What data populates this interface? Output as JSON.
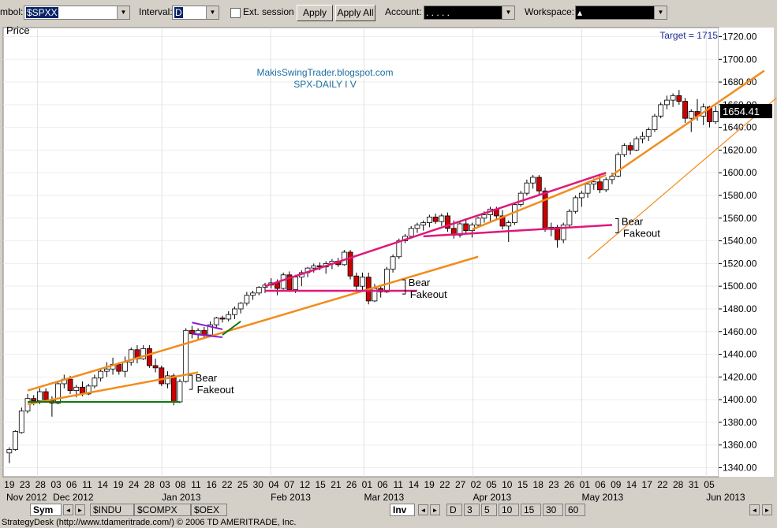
{
  "toolbar": {
    "symbol_label": "mbol:",
    "symbol_value": "$SPXX",
    "interval_label": "Interval:",
    "interval_value": "D",
    "ext_session_label": "Ext. session",
    "apply_label": "Apply",
    "apply_all_label": "Apply All",
    "account_label": "Account:",
    "account_value": ".    .     .     .   .",
    "workspace_label": "Workspace:",
    "workspace_value": "▴"
  },
  "bottom": {
    "sym_tab": "Sym",
    "tabs": [
      "$INDU",
      "$COMPX",
      "$OEX"
    ],
    "inv_tab": "Inv",
    "intervals": [
      "D",
      "3",
      "5",
      "10",
      "15",
      "30",
      "60"
    ],
    "nav_prev": "◄",
    "nav_next": "►"
  },
  "status_text": "StrategyDesk (http://www.tdameritrade.com/) © 2006 TD AMERITRADE, Inc.",
  "colors": {
    "up_candle": "#ffffff",
    "down_candle": "#cc0000",
    "orange_trend": "#f28c1c",
    "magenta_trend": "#e0177a",
    "green_support": "#117a11",
    "purple_flag": "#8a1bd8",
    "annotation_blue": "#1a6fa0",
    "target_blue": "#1f2a9a"
  },
  "chart_data": {
    "type": "candlestick",
    "panel_label": "Price",
    "watermark_line1": "MakisSwingTrader.blogspot.com",
    "watermark_line2": "SPX-DAILY  I V",
    "target_label": "Target = 1715",
    "last_price": "1654.41",
    "ylim": [
      1332,
      1728
    ],
    "yticks": [
      1340,
      1360,
      1380,
      1400,
      1420,
      1440,
      1460,
      1480,
      1500,
      1520,
      1540,
      1560,
      1580,
      1600,
      1620,
      1640,
      1660,
      1680,
      1700,
      1720
    ],
    "ytick_labels": [
      "1340.00",
      "1360.00",
      "1380.00",
      "1400.00",
      "1420.00",
      "1440.00",
      "1460.00",
      "1480.00",
      "1500.00",
      "1520.00",
      "1540.00",
      "1560.00",
      "1580.00",
      "1600.00",
      "1620.00",
      "1640.00",
      "1660.00",
      "1680.00",
      "1700.00",
      "1720.00"
    ],
    "day_labels": [
      "19",
      "23",
      "28",
      "03",
      "06",
      "11",
      "14",
      "19",
      "24",
      "28",
      "03",
      "08",
      "11",
      "16",
      "22",
      "25",
      "30",
      "04",
      "07",
      "12",
      "15",
      "21",
      "26",
      "01",
      "06",
      "11",
      "14",
      "19",
      "22",
      "27",
      "02",
      "05",
      "10",
      "15",
      "18",
      "23",
      "26",
      "01",
      "06",
      "09",
      "14",
      "17",
      "22",
      "28",
      "31",
      "05"
    ],
    "month_labels": [
      {
        "label": "Nov 2012",
        "day_index": 0
      },
      {
        "label": "Dec 2012",
        "day_index": 3
      },
      {
        "label": "Jan 2013",
        "day_index": 10
      },
      {
        "label": "Feb 2013",
        "day_index": 17
      },
      {
        "label": "Mar 2013",
        "day_index": 23
      },
      {
        "label": "Apr 2013",
        "day_index": 30
      },
      {
        "label": "May 2013",
        "day_index": 37
      },
      {
        "label": "Jun 2013",
        "day_index": 45
      }
    ],
    "month_boundaries": [
      2,
      10,
      17,
      23,
      30,
      37,
      45
    ],
    "candles": [
      [
        1353,
        1358,
        1344,
        1356
      ],
      [
        1356,
        1373,
        1355,
        1372
      ],
      [
        1371,
        1393,
        1370,
        1390
      ],
      [
        1390,
        1405,
        1388,
        1401
      ],
      [
        1401,
        1404,
        1395,
        1399
      ],
      [
        1399,
        1410,
        1396,
        1407
      ],
      [
        1407,
        1410,
        1398,
        1400
      ],
      [
        1400,
        1403,
        1385,
        1397
      ],
      [
        1397,
        1416,
        1396,
        1414
      ],
      [
        1414,
        1422,
        1410,
        1418
      ],
      [
        1418,
        1421,
        1405,
        1408
      ],
      [
        1408,
        1413,
        1402,
        1411
      ],
      [
        1411,
        1416,
        1403,
        1405
      ],
      [
        1405,
        1414,
        1404,
        1412
      ],
      [
        1412,
        1422,
        1410,
        1419
      ],
      [
        1419,
        1427,
        1416,
        1425
      ],
      [
        1425,
        1433,
        1420,
        1427
      ],
      [
        1427,
        1437,
        1422,
        1431
      ],
      [
        1431,
        1433,
        1422,
        1425
      ],
      [
        1425,
        1438,
        1420,
        1433
      ],
      [
        1433,
        1446,
        1430,
        1444
      ],
      [
        1444,
        1448,
        1432,
        1436
      ],
      [
        1436,
        1448,
        1435,
        1445
      ],
      [
        1445,
        1448,
        1428,
        1430
      ],
      [
        1430,
        1436,
        1424,
        1428
      ],
      [
        1428,
        1430,
        1412,
        1414
      ],
      [
        1414,
        1425,
        1410,
        1421
      ],
      [
        1421,
        1423,
        1395,
        1398
      ],
      [
        1398,
        1418,
        1397,
        1416
      ],
      [
        1416,
        1463,
        1415,
        1461
      ],
      [
        1461,
        1465,
        1454,
        1458
      ],
      [
        1458,
        1463,
        1452,
        1461
      ],
      [
        1461,
        1464,
        1455,
        1457
      ],
      [
        1457,
        1469,
        1455,
        1466
      ],
      [
        1466,
        1473,
        1463,
        1472
      ],
      [
        1472,
        1474,
        1468,
        1471
      ],
      [
        1471,
        1478,
        1469,
        1475
      ],
      [
        1475,
        1482,
        1471,
        1480
      ],
      [
        1480,
        1486,
        1476,
        1485
      ],
      [
        1485,
        1495,
        1483,
        1492
      ],
      [
        1492,
        1496,
        1488,
        1494
      ],
      [
        1494,
        1500,
        1492,
        1499
      ],
      [
        1499,
        1503,
        1494,
        1501
      ],
      [
        1501,
        1507,
        1498,
        1503
      ],
      [
        1503,
        1506,
        1492,
        1498
      ],
      [
        1498,
        1512,
        1497,
        1510
      ],
      [
        1510,
        1513,
        1495,
        1497
      ],
      [
        1497,
        1510,
        1494,
        1508
      ],
      [
        1508,
        1514,
        1500,
        1512
      ],
      [
        1512,
        1517,
        1508,
        1516
      ],
      [
        1516,
        1520,
        1512,
        1518
      ],
      [
        1518,
        1521,
        1514,
        1517
      ],
      [
        1517,
        1522,
        1511,
        1520
      ],
      [
        1520,
        1524,
        1515,
        1522
      ],
      [
        1522,
        1525,
        1517,
        1519
      ],
      [
        1519,
        1532,
        1518,
        1530
      ],
      [
        1530,
        1532,
        1506,
        1509
      ],
      [
        1509,
        1512,
        1496,
        1500
      ],
      [
        1500,
        1512,
        1496,
        1508
      ],
      [
        1508,
        1512,
        1484,
        1487
      ],
      [
        1487,
        1502,
        1486,
        1498
      ],
      [
        1498,
        1500,
        1490,
        1495
      ],
      [
        1495,
        1517,
        1494,
        1515
      ],
      [
        1515,
        1528,
        1512,
        1526
      ],
      [
        1526,
        1542,
        1524,
        1540
      ],
      [
        1540,
        1546,
        1538,
        1544
      ],
      [
        1544,
        1553,
        1542,
        1551
      ],
      [
        1551,
        1556,
        1547,
        1554
      ],
      [
        1554,
        1558,
        1549,
        1556
      ],
      [
        1556,
        1563,
        1552,
        1561
      ],
      [
        1561,
        1564,
        1555,
        1557
      ],
      [
        1557,
        1564,
        1553,
        1562
      ],
      [
        1562,
        1565,
        1548,
        1551
      ],
      [
        1551,
        1558,
        1542,
        1545
      ],
      [
        1545,
        1557,
        1543,
        1555
      ],
      [
        1555,
        1559,
        1547,
        1549
      ],
      [
        1549,
        1556,
        1543,
        1554
      ],
      [
        1554,
        1561,
        1552,
        1560
      ],
      [
        1560,
        1566,
        1556,
        1563
      ],
      [
        1563,
        1570,
        1556,
        1568
      ],
      [
        1568,
        1570,
        1558,
        1562
      ],
      [
        1562,
        1567,
        1550,
        1553
      ],
      [
        1553,
        1558,
        1539,
        1556
      ],
      [
        1556,
        1574,
        1554,
        1572
      ],
      [
        1572,
        1584,
        1570,
        1582
      ],
      [
        1582,
        1594,
        1580,
        1591
      ],
      [
        1591,
        1598,
        1586,
        1596
      ],
      [
        1596,
        1598,
        1580,
        1584
      ],
      [
        1584,
        1587,
        1548,
        1550
      ],
      [
        1550,
        1556,
        1544,
        1552
      ],
      [
        1552,
        1554,
        1534,
        1541
      ],
      [
        1541,
        1556,
        1538,
        1554
      ],
      [
        1554,
        1568,
        1552,
        1566
      ],
      [
        1566,
        1580,
        1564,
        1578
      ],
      [
        1578,
        1584,
        1570,
        1582
      ],
      [
        1582,
        1592,
        1578,
        1590
      ],
      [
        1590,
        1595,
        1585,
        1592
      ],
      [
        1592,
        1598,
        1582,
        1585
      ],
      [
        1585,
        1596,
        1583,
        1594
      ],
      [
        1594,
        1600,
        1590,
        1597
      ],
      [
        1597,
        1618,
        1596,
        1616
      ],
      [
        1616,
        1626,
        1614,
        1624
      ],
      [
        1624,
        1627,
        1616,
        1620
      ],
      [
        1620,
        1632,
        1619,
        1630
      ],
      [
        1630,
        1636,
        1626,
        1632
      ],
      [
        1632,
        1640,
        1628,
        1638
      ],
      [
        1638,
        1652,
        1636,
        1650
      ],
      [
        1650,
        1662,
        1648,
        1660
      ],
      [
        1660,
        1668,
        1656,
        1664
      ],
      [
        1664,
        1670,
        1658,
        1668
      ],
      [
        1668,
        1673,
        1660,
        1663
      ],
      [
        1663,
        1666,
        1644,
        1648
      ],
      [
        1648,
        1656,
        1636,
        1654
      ],
      [
        1654,
        1665,
        1646,
        1650
      ],
      [
        1650,
        1661,
        1642,
        1658
      ],
      [
        1658,
        1659,
        1640,
        1645
      ],
      [
        1645,
        1659,
        1643,
        1654
      ]
    ],
    "trendlines": [
      {
        "style": "orange",
        "from": [
          3,
          1408
        ],
        "to": [
          77,
          1526
        ]
      },
      {
        "style": "orange",
        "from": [
          3,
          1396
        ],
        "to": [
          31,
          1424
        ]
      },
      {
        "style": "green",
        "from": [
          3,
          1398
        ],
        "to": [
          28,
          1398
        ]
      },
      {
        "style": "purple",
        "from": [
          30,
          1468
        ],
        "to": [
          35,
          1462
        ]
      },
      {
        "style": "purple",
        "from": [
          30,
          1458
        ],
        "to": [
          35,
          1455
        ]
      },
      {
        "style": "green",
        "from": [
          35,
          1457
        ],
        "to": [
          38,
          1469
        ]
      },
      {
        "style": "magenta",
        "from": [
          42,
          1500
        ],
        "to": [
          98,
          1600
        ]
      },
      {
        "style": "magenta",
        "from": [
          42,
          1496
        ],
        "to": [
          67,
          1496
        ]
      },
      {
        "style": "magenta",
        "from": [
          68,
          1544
        ],
        "to": [
          99,
          1554
        ]
      },
      {
        "style": "orange",
        "from": [
          76,
          1550
        ],
        "to": [
          98,
          1598
        ]
      },
      {
        "style": "orange",
        "from": [
          99,
          1598
        ],
        "to": [
          124,
          1690
        ]
      },
      {
        "style": "orange_thin",
        "from": [
          95,
          1524
        ],
        "to": [
          126,
          1666
        ]
      }
    ],
    "annotations": [
      {
        "line1": "Bear",
        "line2": "Fakeout",
        "at": [
          29,
          1416
        ]
      },
      {
        "line1": "Bear",
        "line2": "Fakeout",
        "at": [
          64,
          1500
        ]
      },
      {
        "line1": "Bear",
        "line2": "Fakeout",
        "at": [
          99,
          1554
        ]
      }
    ]
  }
}
